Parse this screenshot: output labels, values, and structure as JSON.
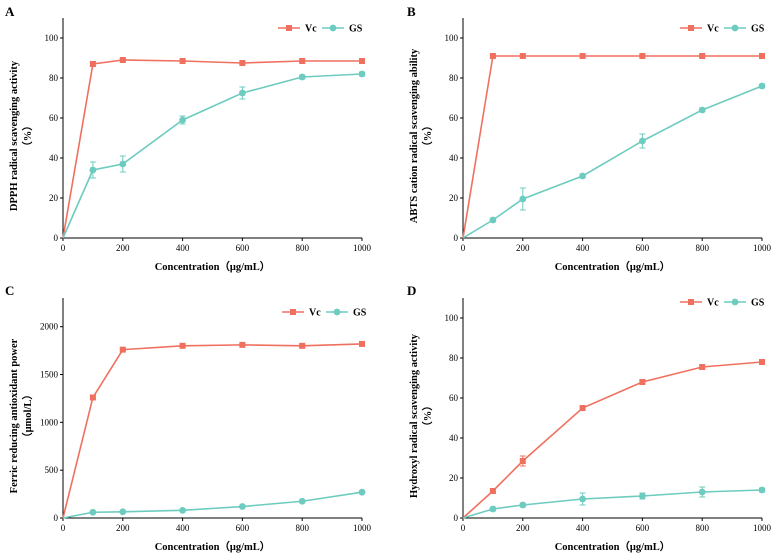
{
  "colors": {
    "vc": "#f07060",
    "gs": "#6dcbbf",
    "axis": "#000000"
  },
  "legend": {
    "vc": "Vc",
    "gs": "GS"
  },
  "chart_data": [
    {
      "panel": "A",
      "type": "line",
      "x": [
        0,
        100,
        200,
        400,
        600,
        800,
        1000
      ],
      "series": [
        {
          "name": "Vc",
          "values": [
            0,
            87,
            89,
            88.5,
            87.5,
            88.5,
            88.5
          ],
          "errors": [
            0,
            1,
            0.5,
            0.5,
            0.5,
            0.5,
            0.5
          ]
        },
        {
          "name": "GS",
          "values": [
            0,
            34,
            37,
            59,
            72.5,
            80.5,
            82
          ],
          "errors": [
            0,
            4,
            4,
            2,
            3,
            1,
            1
          ]
        }
      ],
      "xlabel": "Concentration（μg/mL）",
      "ylabel": [
        "DPPH radical scavenging activity",
        "（%）"
      ],
      "xlim": [
        0,
        1000
      ],
      "ylim": [
        0,
        110
      ],
      "xticks": [
        0,
        200,
        400,
        600,
        800,
        1000
      ],
      "yticks": [
        0,
        20,
        40,
        60,
        80,
        100
      ]
    },
    {
      "panel": "B",
      "type": "line",
      "x": [
        0,
        100,
        200,
        400,
        600,
        800,
        1000
      ],
      "series": [
        {
          "name": "Vc",
          "values": [
            0,
            91,
            91,
            91,
            91,
            91,
            91
          ],
          "errors": [
            0,
            0.5,
            0.5,
            0.5,
            0.5,
            0.5,
            0.5
          ]
        },
        {
          "name": "GS",
          "values": [
            0,
            9,
            19.5,
            31,
            48.5,
            64,
            76
          ],
          "errors": [
            0,
            1,
            5.5,
            1,
            3.5,
            1,
            1
          ]
        }
      ],
      "xlabel": "Concentration（μg/mL）",
      "ylabel": [
        "ABTS cation radical scavenging ability",
        "（%）"
      ],
      "xlim": [
        0,
        1000
      ],
      "ylim": [
        0,
        110
      ],
      "xticks": [
        0,
        200,
        400,
        600,
        800,
        1000
      ],
      "yticks": [
        0,
        20,
        40,
        60,
        80,
        100
      ]
    },
    {
      "panel": "C",
      "type": "line",
      "x": [
        0,
        100,
        200,
        400,
        600,
        800,
        1000
      ],
      "series": [
        {
          "name": "Vc",
          "values": [
            0,
            1260,
            1760,
            1800,
            1810,
            1800,
            1820
          ],
          "errors": [
            0,
            15,
            15,
            15,
            15,
            15,
            15
          ]
        },
        {
          "name": "GS",
          "values": [
            0,
            60,
            65,
            80,
            120,
            175,
            270
          ],
          "errors": [
            0,
            8,
            8,
            8,
            10,
            10,
            12
          ]
        }
      ],
      "xlabel": "Concentration（μg/mL）",
      "ylabel": [
        "Ferric reducing antioxidant power",
        "（μmol/L）"
      ],
      "xlim": [
        0,
        1000
      ],
      "ylim": [
        0,
        2300
      ],
      "xticks": [
        0,
        200,
        400,
        600,
        800,
        1000
      ],
      "yticks": [
        0,
        500,
        1000,
        1500,
        2000
      ]
    },
    {
      "panel": "D",
      "type": "line",
      "x": [
        0,
        100,
        200,
        400,
        600,
        800,
        1000
      ],
      "series": [
        {
          "name": "Vc",
          "values": [
            0,
            13.5,
            28.5,
            55,
            68,
            75.5,
            78
          ],
          "errors": [
            0,
            1,
            2.5,
            1,
            1,
            1,
            1
          ]
        },
        {
          "name": "GS",
          "values": [
            0,
            4.5,
            6.5,
            9.5,
            11,
            13,
            14
          ],
          "errors": [
            0,
            1,
            1,
            3,
            1.5,
            2.5,
            1
          ]
        }
      ],
      "xlabel": "Concentration（μg/mL）",
      "ylabel": [
        "Hydroxyl radical scavenging activity",
        "（%）"
      ],
      "xlim": [
        0,
        1000
      ],
      "ylim": [
        0,
        110
      ],
      "xticks": [
        0,
        200,
        400,
        600,
        800,
        1000
      ],
      "yticks": [
        0,
        20,
        40,
        60,
        80,
        100
      ]
    }
  ]
}
